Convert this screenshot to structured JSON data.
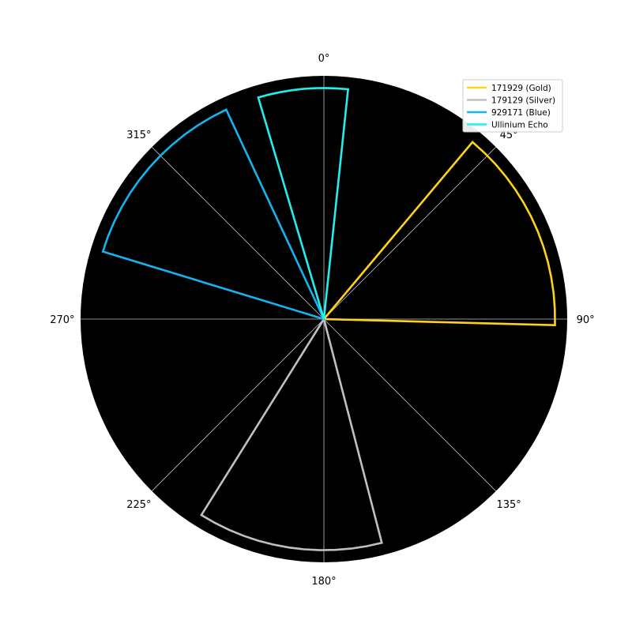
{
  "chart_data": {
    "type": "polar",
    "title": "",
    "angle_direction": "clockwise",
    "zero_location": "top",
    "angle_tick_labels": [
      "0°",
      "45°",
      "90°",
      "135°",
      "180°",
      "225°",
      "270°",
      "315°"
    ],
    "angle_ticks_deg": [
      0,
      45,
      90,
      135,
      180,
      225,
      270,
      315
    ],
    "radial_range": [
      0,
      1
    ],
    "grid": true,
    "background": "#000000",
    "legend_position": "top-right",
    "series": [
      {
        "name": "171929 (Gold)",
        "color": "#FFD21A",
        "theta_start_deg": 40,
        "theta_end_deg": 91.5,
        "r": 0.95
      },
      {
        "name": "179129 (Silver)",
        "color": "#C0C0C0",
        "theta_start_deg": 165.5,
        "theta_end_deg": 212,
        "r": 0.95
      },
      {
        "name": "929171 (Blue)",
        "color": "#14B4F0",
        "theta_start_deg": 287,
        "theta_end_deg": 335,
        "r": 0.95
      },
      {
        "name": "Ullinium Echo",
        "color": "#22EEEE",
        "theta_start_deg": 343.5,
        "theta_end_deg": 6,
        "r": 0.95
      }
    ]
  }
}
